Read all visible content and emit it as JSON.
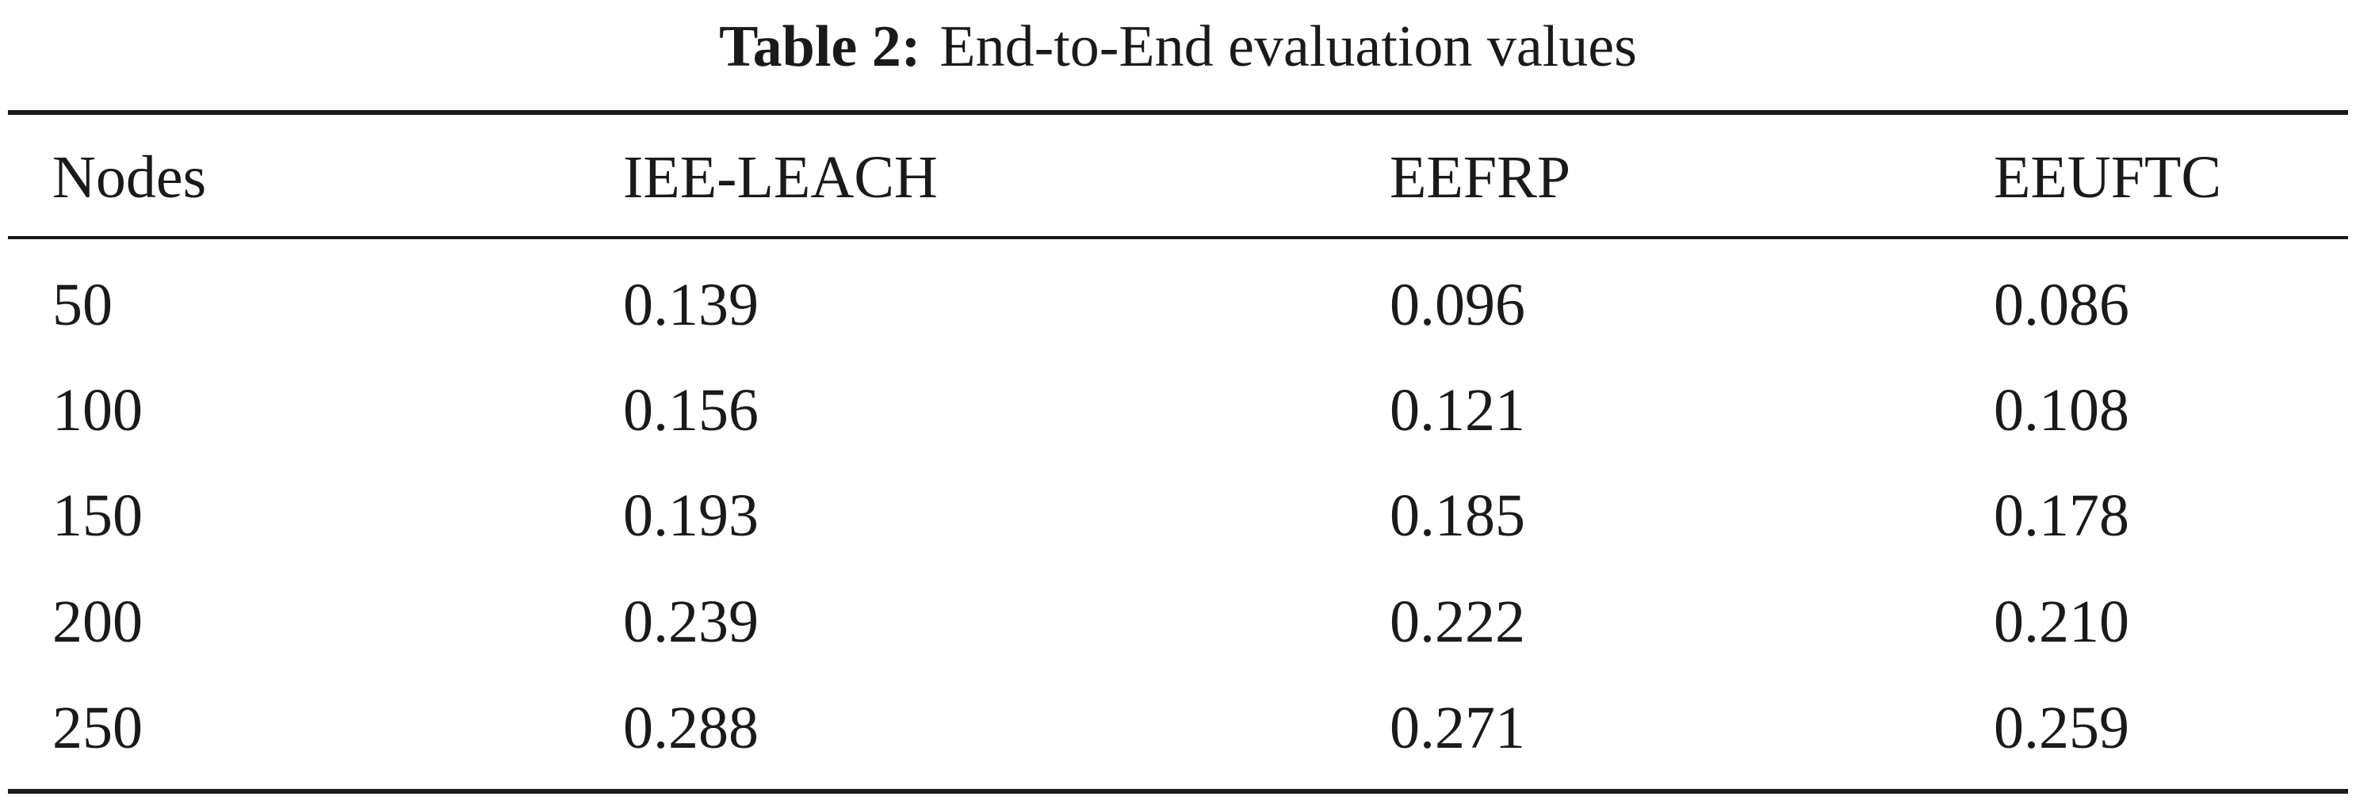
{
  "caption": {
    "label": "Table 2:",
    "text": "End-to-End evaluation values"
  },
  "table": {
    "columns": [
      "Nodes",
      "IEE-LEACH",
      "EEFRP",
      "EEUFTC"
    ],
    "rows": [
      [
        "50",
        "0.139",
        "0.096",
        "0.086"
      ],
      [
        "100",
        "0.156",
        "0.121",
        "0.108"
      ],
      [
        "150",
        "0.193",
        "0.185",
        "0.178"
      ],
      [
        "200",
        "0.239",
        "0.222",
        "0.210"
      ],
      [
        "250",
        "0.288",
        "0.271",
        "0.259"
      ]
    ]
  }
}
